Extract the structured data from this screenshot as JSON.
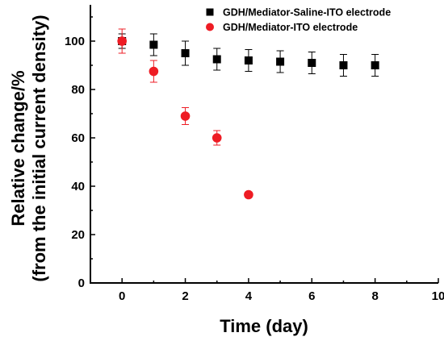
{
  "chart_data": {
    "type": "scatter",
    "xlabel": "Time (day)",
    "ylabel_lines": [
      "Relative change/%",
      "(from the initial current density)"
    ],
    "xlim": [
      -1,
      10
    ],
    "ylim": [
      0,
      115
    ],
    "x_ticks": [
      0,
      2,
      4,
      6,
      8,
      10
    ],
    "y_ticks": [
      0,
      20,
      40,
      60,
      80,
      100
    ],
    "grid": false,
    "legend_position": "top-right",
    "series": [
      {
        "name": "GDH/Mediator-Saline-ITO electrode",
        "marker": "square",
        "color": "#000000",
        "points": [
          {
            "x": 0,
            "y": 100,
            "err": 3
          },
          {
            "x": 1,
            "y": 98.5,
            "err": 4.5
          },
          {
            "x": 2,
            "y": 95,
            "err": 5
          },
          {
            "x": 3,
            "y": 92.5,
            "err": 4.5
          },
          {
            "x": 4,
            "y": 92,
            "err": 4.5
          },
          {
            "x": 5,
            "y": 91.5,
            "err": 4.5
          },
          {
            "x": 6,
            "y": 91,
            "err": 4.5
          },
          {
            "x": 7,
            "y": 90,
            "err": 4.5
          },
          {
            "x": 8,
            "y": 90,
            "err": 4.5
          }
        ]
      },
      {
        "name": "GDH/Mediator-ITO electrode",
        "marker": "circle",
        "color": "#ee1c24",
        "points": [
          {
            "x": 0,
            "y": 100,
            "err": 5
          },
          {
            "x": 1,
            "y": 87.5,
            "err": 4.5
          },
          {
            "x": 2,
            "y": 69,
            "err": 3.5
          },
          {
            "x": 3,
            "y": 60,
            "err": 3
          },
          {
            "x": 4,
            "y": 36.5,
            "err": 1
          }
        ]
      }
    ]
  }
}
